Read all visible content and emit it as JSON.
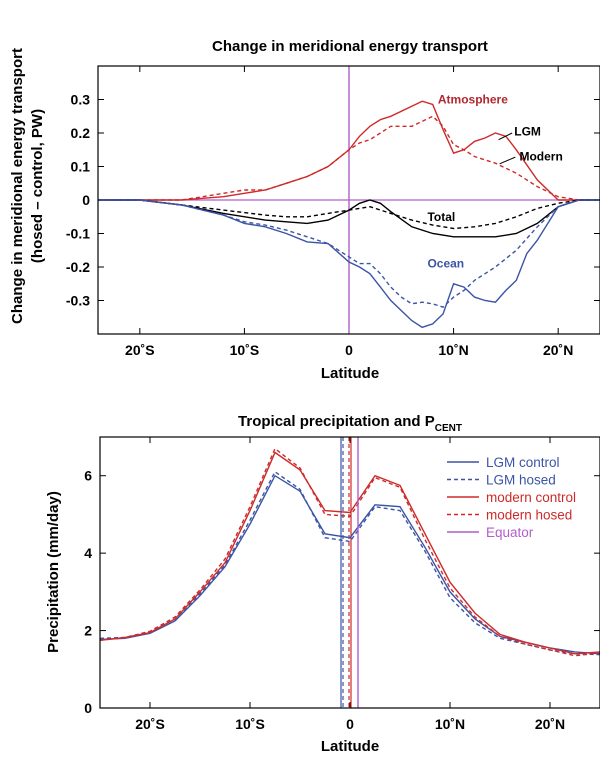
{
  "chart_data": [
    {
      "type": "line",
      "title": "Change in meridional energy transport",
      "xlabel": "Latitude",
      "ylabel_lines": [
        "Change in meridional energy transport",
        "(hosed – control, PW)"
      ],
      "xlim": [
        -24,
        24
      ],
      "ylim": [
        -0.4,
        0.4
      ],
      "x_ticks": [
        -20,
        -10,
        0,
        10,
        20
      ],
      "x_tick_labels": [
        "20˚S",
        "10˚S",
        "0",
        "10˚N",
        "20˚N"
      ],
      "y_ticks": [
        -0.3,
        -0.2,
        -0.1,
        0,
        0.1,
        0.2,
        0.3
      ],
      "y_tick_labels": [
        "-0.3",
        "-0.2",
        "-0.1",
        "0",
        "0.1",
        "0.2",
        "0.3"
      ],
      "grid": false,
      "colors": {
        "atmosphere": "#cf2a2a",
        "ocean": "#3b54a6",
        "total": "#000000",
        "equator": "#b05fc9"
      },
      "annotations": [
        {
          "text": "Atmosphere",
          "x": 8.5,
          "y": 0.3,
          "color": "#b02830"
        },
        {
          "text": "LGM",
          "x": 15.8,
          "y": 0.205,
          "color": "#000000"
        },
        {
          "text": "Modern",
          "x": 16.3,
          "y": 0.13,
          "color": "#000000"
        },
        {
          "text": "Total",
          "x": 7.5,
          "y": -0.05,
          "color": "#000000"
        },
        {
          "text": "Ocean",
          "x": 7.5,
          "y": -0.19,
          "color": "#3b54a6"
        }
      ],
      "series": [
        {
          "component": "atmosphere",
          "style": "solid",
          "x": [
            -24,
            -20,
            -16,
            -14,
            -12,
            -10,
            -8,
            -6,
            -4,
            -2,
            0,
            1,
            2,
            3,
            4,
            6,
            7,
            8,
            9,
            10,
            11,
            12,
            13,
            14,
            15,
            16,
            18,
            20,
            22,
            24
          ],
          "y": [
            0,
            0,
            0,
            0.005,
            0.01,
            0.02,
            0.03,
            0.05,
            0.07,
            0.1,
            0.15,
            0.19,
            0.22,
            0.24,
            0.25,
            0.28,
            0.295,
            0.285,
            0.21,
            0.14,
            0.15,
            0.175,
            0.185,
            0.2,
            0.19,
            0.15,
            0.06,
            0,
            0,
            0
          ]
        },
        {
          "component": "atmosphere",
          "style": "dashed",
          "x": [
            -24,
            -20,
            -16,
            -14,
            -12,
            -10,
            -8,
            -6,
            -4,
            -2,
            0,
            1,
            2,
            3,
            4,
            6,
            8,
            9,
            10,
            11,
            12,
            14,
            16,
            18,
            20,
            22,
            24
          ],
          "y": [
            0,
            0,
            0,
            0.01,
            0.02,
            0.03,
            0.03,
            0.05,
            0.07,
            0.1,
            0.15,
            0.17,
            0.18,
            0.2,
            0.22,
            0.22,
            0.25,
            0.22,
            0.165,
            0.15,
            0.13,
            0.11,
            0.08,
            0.04,
            0.01,
            0,
            0
          ]
        },
        {
          "component": "total",
          "style": "solid",
          "x": [
            -24,
            -20,
            -16,
            -12,
            -8,
            -6,
            -4,
            -2,
            0,
            1,
            2,
            3,
            4,
            6,
            8,
            10,
            12,
            14,
            16,
            18,
            20,
            22,
            24
          ],
          "y": [
            0,
            0,
            -0.015,
            -0.04,
            -0.06,
            -0.065,
            -0.07,
            -0.06,
            -0.03,
            -0.01,
            0,
            -0.01,
            -0.035,
            -0.08,
            -0.1,
            -0.11,
            -0.11,
            -0.11,
            -0.1,
            -0.07,
            -0.02,
            0,
            0
          ]
        },
        {
          "component": "total",
          "style": "dashed",
          "x": [
            -24,
            -20,
            -16,
            -12,
            -8,
            -6,
            -4,
            -2,
            0,
            2,
            4,
            6,
            8,
            10,
            12,
            14,
            16,
            18,
            20,
            22,
            24
          ],
          "y": [
            0,
            0,
            -0.015,
            -0.03,
            -0.045,
            -0.05,
            -0.05,
            -0.04,
            -0.03,
            -0.02,
            -0.04,
            -0.06,
            -0.075,
            -0.085,
            -0.08,
            -0.07,
            -0.05,
            -0.025,
            -0.01,
            0,
            0
          ]
        },
        {
          "component": "ocean",
          "style": "solid",
          "x": [
            -24,
            -20,
            -16,
            -14,
            -12,
            -10,
            -8,
            -6,
            -4,
            -2,
            0,
            1,
            2,
            3,
            4,
            5,
            6,
            7,
            8,
            9,
            10,
            11,
            12,
            13,
            14,
            15,
            16,
            17,
            18,
            20,
            22,
            24
          ],
          "y": [
            0,
            0,
            -0.015,
            -0.03,
            -0.045,
            -0.07,
            -0.08,
            -0.1,
            -0.125,
            -0.13,
            -0.185,
            -0.2,
            -0.22,
            -0.26,
            -0.3,
            -0.33,
            -0.36,
            -0.38,
            -0.37,
            -0.34,
            -0.25,
            -0.26,
            -0.29,
            -0.3,
            -0.305,
            -0.27,
            -0.24,
            -0.16,
            -0.12,
            -0.02,
            0,
            0
          ]
        },
        {
          "component": "ocean",
          "style": "dashed",
          "x": [
            -24,
            -20,
            -16,
            -14,
            -12,
            -10,
            -8,
            -6,
            -4,
            -2,
            0,
            1,
            2,
            3,
            4,
            5,
            6,
            7,
            8,
            9,
            10,
            11,
            12,
            13,
            14,
            16,
            18,
            20,
            22,
            24
          ],
          "y": [
            0,
            0,
            -0.015,
            -0.03,
            -0.045,
            -0.065,
            -0.075,
            -0.09,
            -0.11,
            -0.13,
            -0.17,
            -0.19,
            -0.19,
            -0.22,
            -0.26,
            -0.29,
            -0.31,
            -0.305,
            -0.31,
            -0.32,
            -0.29,
            -0.27,
            -0.24,
            -0.22,
            -0.2,
            -0.15,
            -0.08,
            -0.02,
            0,
            0
          ]
        }
      ]
    },
    {
      "type": "line",
      "title_main": "Tropical precipitation and P",
      "title_sub": "CENT",
      "xlabel": "Latitude",
      "ylabel": "Precipitation (mm/day)",
      "xlim": [
        -25,
        25
      ],
      "ylim": [
        0,
        7
      ],
      "x_ticks": [
        -20,
        -10,
        0,
        10,
        20
      ],
      "x_tick_labels": [
        "20˚S",
        "10˚S",
        "0",
        "10˚N",
        "20˚N"
      ],
      "y_ticks": [
        0,
        2,
        4,
        6
      ],
      "y_tick_labels": [
        "0",
        "2",
        "4",
        "6"
      ],
      "grid": false,
      "legend_position": "top-right",
      "x": [
        -25,
        -22.5,
        -20,
        -17.5,
        -15,
        -12.5,
        -10,
        -7.5,
        -5,
        -2.5,
        0,
        2.5,
        5,
        7.5,
        10,
        12.5,
        15,
        17.5,
        20,
        22.5,
        25
      ],
      "series": [
        {
          "name": "LGM control",
          "color": "#3b54a6",
          "style": "solid",
          "y": [
            1.77,
            1.8,
            1.93,
            2.25,
            2.9,
            3.65,
            4.75,
            6.0,
            5.6,
            4.5,
            4.4,
            5.25,
            5.2,
            4.15,
            3.0,
            2.3,
            1.85,
            1.7,
            1.55,
            1.45,
            1.4
          ]
        },
        {
          "name": "LGM hosed",
          "color": "#3b54a6",
          "style": "dashed",
          "y": [
            1.8,
            1.82,
            1.97,
            2.3,
            2.95,
            3.7,
            4.85,
            6.1,
            5.65,
            4.4,
            4.3,
            5.2,
            5.1,
            4.05,
            2.85,
            2.2,
            1.8,
            1.65,
            1.5,
            1.4,
            1.38
          ]
        },
        {
          "name": "modern control",
          "color": "#cf2a2a",
          "style": "solid",
          "y": [
            1.75,
            1.82,
            1.95,
            2.3,
            3.0,
            3.75,
            5.1,
            6.6,
            6.15,
            5.1,
            5.05,
            6.0,
            5.75,
            4.5,
            3.25,
            2.45,
            1.9,
            1.7,
            1.55,
            1.4,
            1.45
          ]
        },
        {
          "name": "modern hosed",
          "color": "#cf2a2a",
          "style": "dashed",
          "y": [
            1.75,
            1.82,
            1.98,
            2.35,
            3.05,
            3.85,
            5.2,
            6.7,
            6.2,
            5.0,
            4.95,
            5.95,
            5.7,
            4.35,
            3.1,
            2.35,
            1.85,
            1.65,
            1.5,
            1.35,
            1.42
          ]
        },
        {
          "name": "Equator",
          "color": "#b05fc9",
          "style": "solid",
          "vertical_at": 0.8
        }
      ],
      "p_cent_lines": [
        {
          "x": -0.9,
          "color": "#3b54a6",
          "style": "solid"
        },
        {
          "x": -0.7,
          "color": "#3b54a6",
          "style": "dashed"
        },
        {
          "x": 0.1,
          "color": "#cf2a2a",
          "style": "solid"
        },
        {
          "x": -0.1,
          "color": "#cf2a2a",
          "style": "dashed"
        }
      ]
    }
  ]
}
